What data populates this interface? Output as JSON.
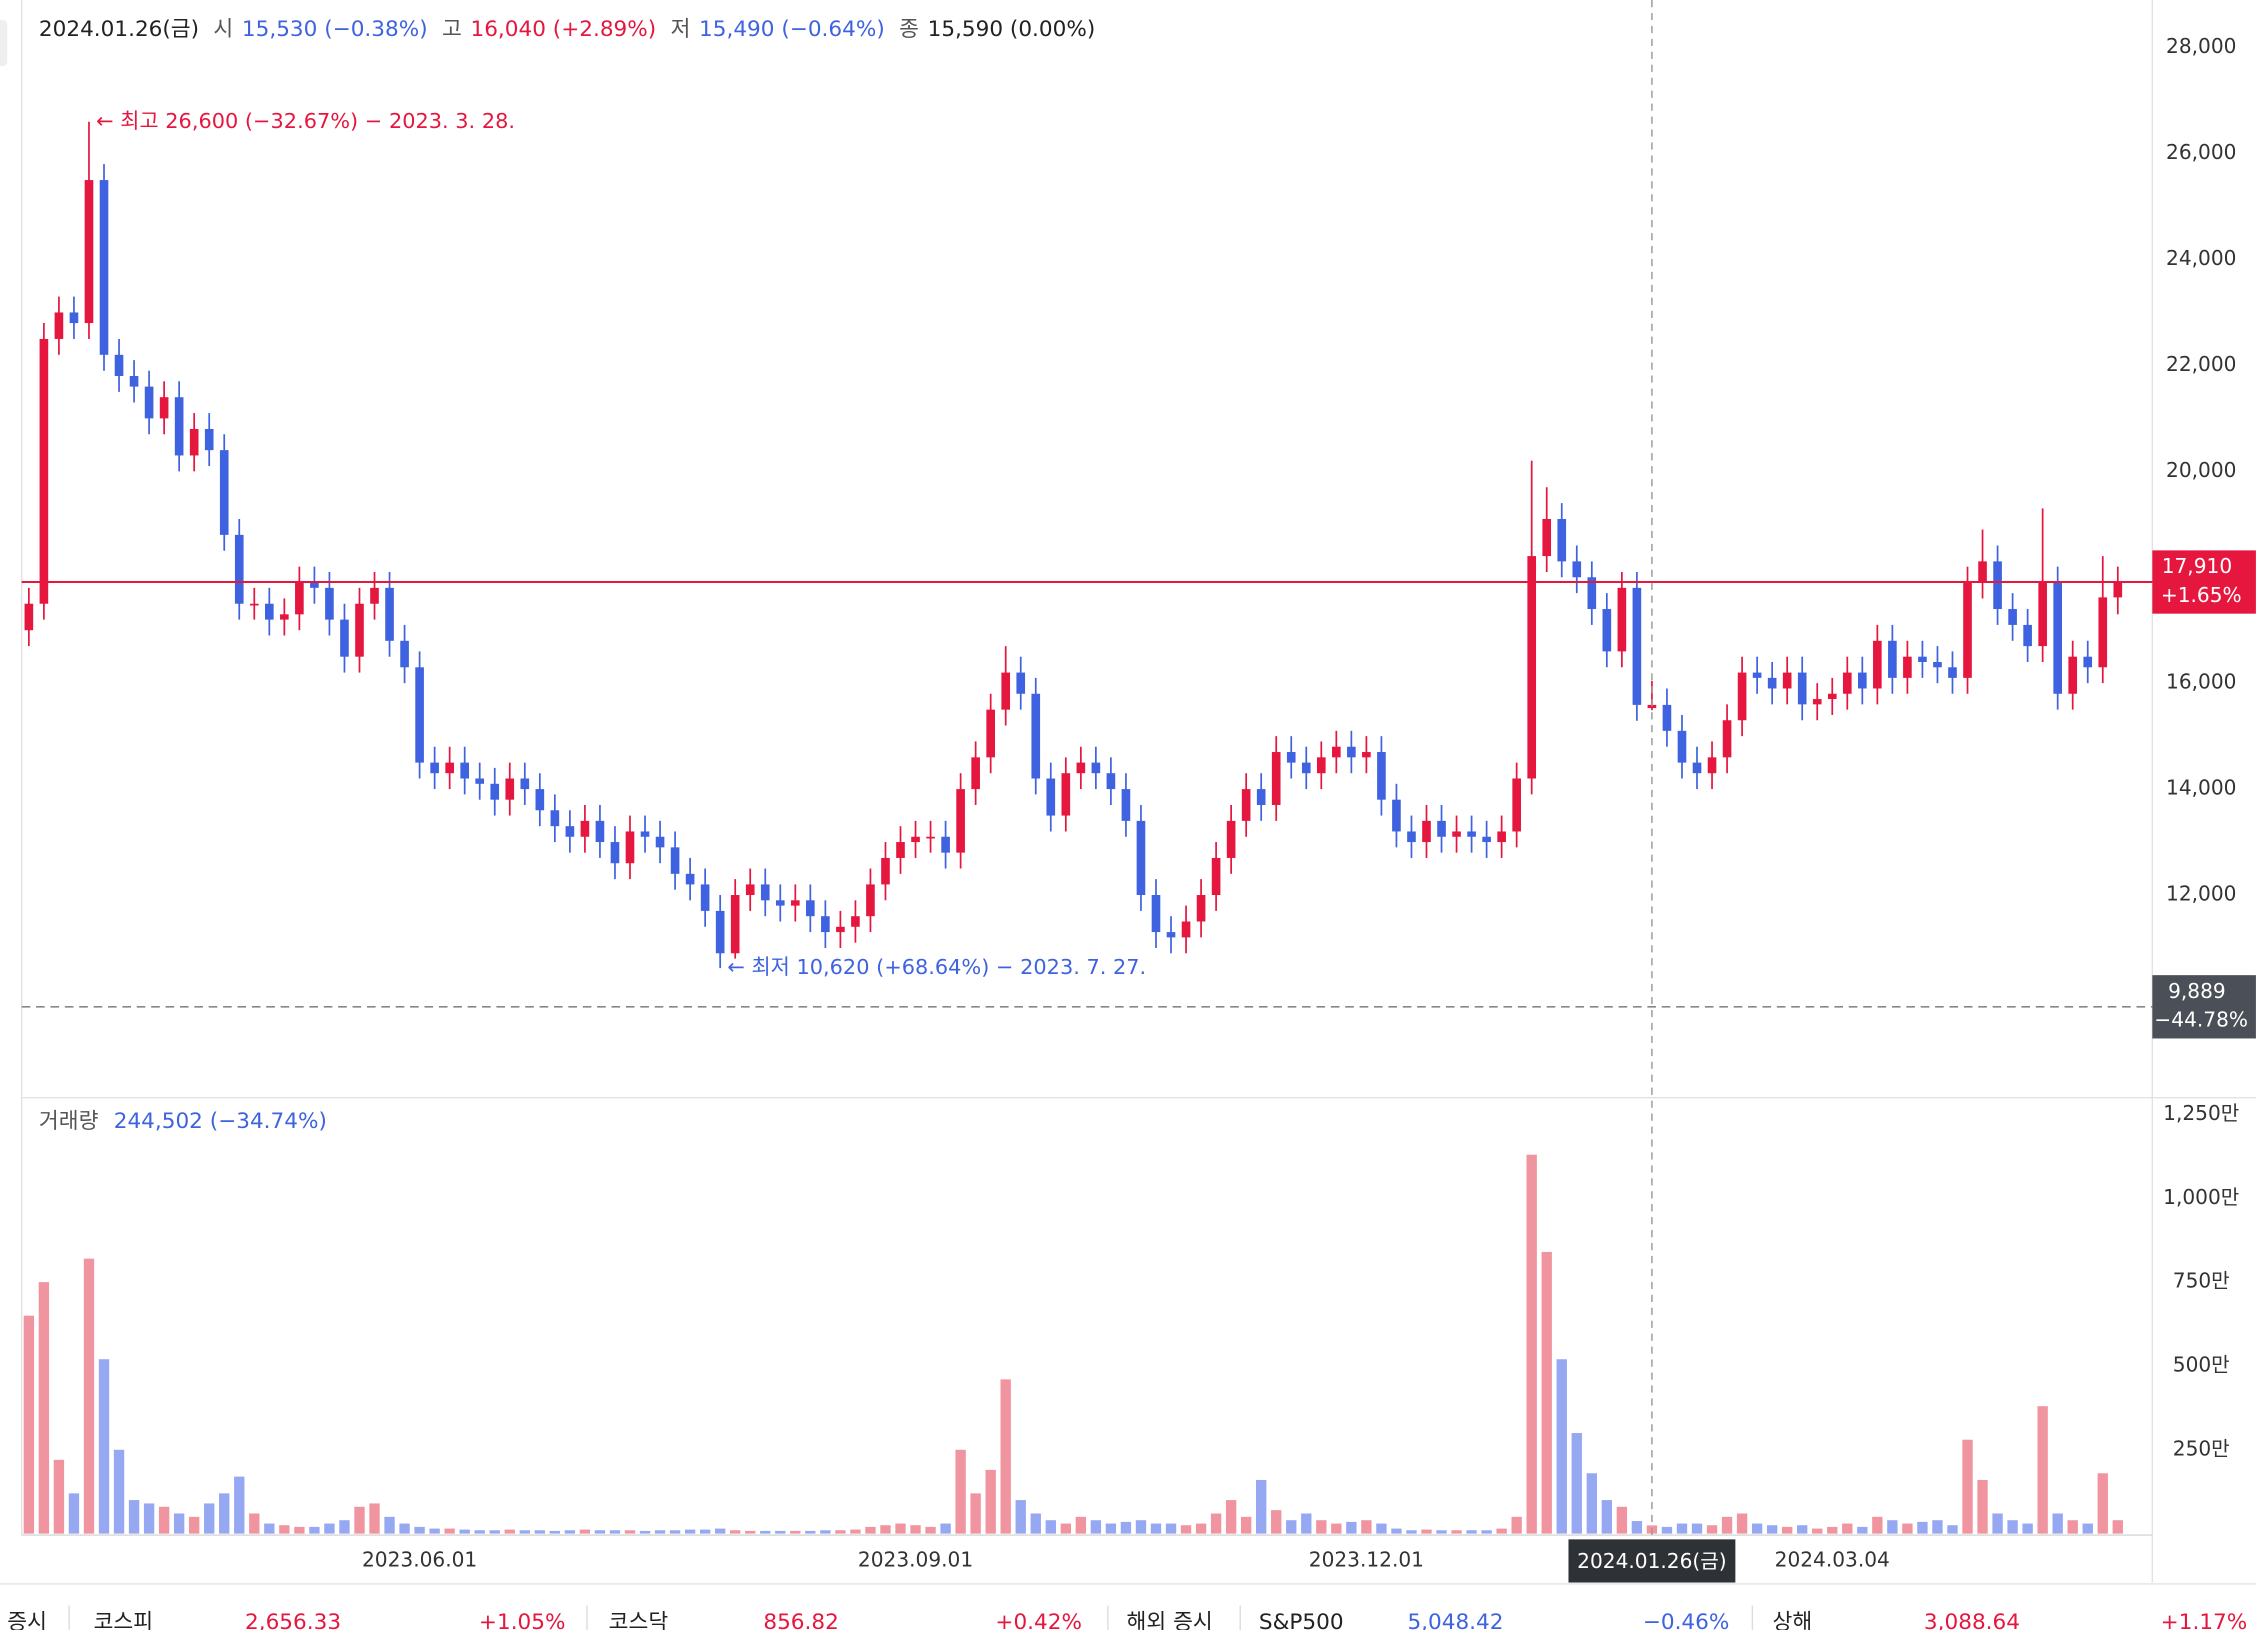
{
  "chart_data": {
    "type": "candlestick",
    "up_color": "#e5173f",
    "down_color": "#3f63e0",
    "categories": [
      null,
      null,
      null,
      null,
      null,
      null,
      null,
      null,
      null,
      null,
      null,
      null,
      null,
      null,
      null,
      null,
      null,
      null,
      null,
      null,
      null,
      null,
      null,
      null,
      null,
      null,
      "2023.06.01",
      null,
      null,
      null,
      null,
      null,
      null,
      null,
      null,
      null,
      null,
      null,
      null,
      null,
      null,
      null,
      null,
      null,
      null,
      null,
      null,
      null,
      null,
      null,
      null,
      null,
      null,
      null,
      null,
      null,
      null,
      null,
      null,
      "2023.09.01",
      null,
      null,
      null,
      null,
      null,
      null,
      null,
      null,
      null,
      null,
      null,
      null,
      null,
      null,
      null,
      null,
      null,
      null,
      null,
      null,
      null,
      null,
      null,
      null,
      null,
      null,
      null,
      null,
      null,
      "2023.12.01",
      null,
      null,
      null,
      null,
      null,
      null,
      null,
      null,
      null,
      null,
      null,
      null,
      null,
      null,
      null,
      null,
      null,
      null,
      "2024.01.26(금)",
      null,
      null,
      null,
      null,
      null,
      null,
      null,
      null,
      null,
      null,
      null,
      "2024.03.04",
      null,
      null,
      null,
      null,
      null,
      null,
      null,
      null,
      null,
      null,
      null,
      null,
      null,
      null,
      null,
      null,
      null,
      null,
      null
    ],
    "open": [
      17000,
      17500,
      22500,
      23000,
      22800,
      25500,
      22200,
      21800,
      21600,
      21000,
      21400,
      20300,
      20800,
      20400,
      18800,
      17500,
      17500,
      17200,
      17300,
      17900,
      17800,
      17200,
      16500,
      17500,
      17800,
      16800,
      16300,
      14500,
      14300,
      14500,
      14200,
      14100,
      13800,
      14200,
      14000,
      13600,
      13300,
      13100,
      13400,
      13000,
      12600,
      13200,
      13100,
      12900,
      12400,
      12200,
      11700,
      10900,
      12000,
      12200,
      11900,
      11800,
      11900,
      11600,
      11300,
      11400,
      11600,
      12200,
      12700,
      13000,
      13100,
      13100,
      12800,
      14000,
      14600,
      15500,
      16200,
      15800,
      14200,
      13500,
      14300,
      14500,
      14300,
      14000,
      13400,
      12000,
      11300,
      11200,
      11500,
      12000,
      12700,
      13400,
      14000,
      13700,
      14700,
      14500,
      14300,
      14600,
      14800,
      14600,
      14700,
      13800,
      13200,
      13000,
      13400,
      13100,
      13200,
      13100,
      13000,
      13200,
      14200,
      18400,
      19100,
      18300,
      18000,
      17400,
      16600,
      17800,
      15530,
      15590,
      15100,
      14500,
      14300,
      14600,
      15300,
      16200,
      16100,
      15900,
      16200,
      15600,
      15700,
      15800,
      16200,
      15900,
      16800,
      16100,
      16500,
      16400,
      16300,
      16100,
      17900,
      18300,
      17400,
      17100,
      16700,
      17900,
      15800,
      16500,
      16300,
      17620
    ],
    "high": [
      17800,
      22800,
      23300,
      23300,
      26600,
      25800,
      22500,
      22100,
      21900,
      21700,
      21700,
      21100,
      21100,
      20700,
      19100,
      17800,
      17800,
      17600,
      18200,
      18200,
      18100,
      17500,
      17800,
      18100,
      18100,
      17100,
      16600,
      14800,
      14800,
      14800,
      14500,
      14400,
      14500,
      14500,
      14300,
      13900,
      13600,
      13700,
      13700,
      13300,
      13500,
      13500,
      13400,
      13200,
      12700,
      12500,
      12000,
      12300,
      12500,
      12500,
      12200,
      12200,
      12200,
      11900,
      11700,
      11900,
      12500,
      13000,
      13300,
      13400,
      13400,
      13400,
      14300,
      14900,
      15800,
      16700,
      16500,
      16100,
      14500,
      14600,
      14800,
      14800,
      14600,
      14300,
      13700,
      12300,
      11600,
      11800,
      12300,
      13000,
      13700,
      14300,
      14300,
      15000,
      15000,
      14800,
      14900,
      15100,
      15100,
      15000,
      15000,
      14100,
      13500,
      13700,
      13700,
      13500,
      13500,
      13400,
      13500,
      14500,
      20200,
      19700,
      19400,
      18600,
      18300,
      17700,
      18100,
      18100,
      16040,
      15900,
      15400,
      14800,
      14900,
      15600,
      16500,
      16500,
      16400,
      16500,
      16500,
      16000,
      16100,
      16500,
      16500,
      17100,
      17100,
      16800,
      16800,
      16700,
      16600,
      18200,
      18900,
      18600,
      17700,
      17400,
      19300,
      18200,
      16800,
      16800,
      18400,
      18200
    ],
    "low": [
      16700,
      17200,
      22200,
      22500,
      22500,
      21900,
      21500,
      21300,
      20700,
      20700,
      20000,
      20000,
      20100,
      18500,
      17200,
      17200,
      16900,
      16900,
      17000,
      17500,
      16900,
      16200,
      16200,
      17200,
      16500,
      16000,
      14200,
      14000,
      14000,
      13900,
      13800,
      13500,
      13500,
      13700,
      13300,
      13000,
      12800,
      12800,
      12700,
      12300,
      12300,
      12800,
      12600,
      12100,
      11900,
      11400,
      10620,
      10800,
      11700,
      11600,
      11500,
      11500,
      11300,
      11000,
      11000,
      11100,
      11300,
      11900,
      12400,
      12700,
      12800,
      12500,
      12500,
      13700,
      14300,
      15200,
      15500,
      13900,
      13200,
      13200,
      14000,
      14000,
      13700,
      13100,
      11700,
      11000,
      10900,
      10900,
      11200,
      11700,
      12400,
      13100,
      13400,
      13400,
      14200,
      14000,
      14000,
      14300,
      14300,
      14300,
      13500,
      12900,
      12700,
      12700,
      12800,
      12800,
      12800,
      12700,
      12700,
      12900,
      13900,
      18100,
      18000,
      17700,
      17100,
      16300,
      16300,
      15290,
      15490,
      14800,
      14200,
      14000,
      14000,
      14300,
      15000,
      15800,
      15600,
      15600,
      15300,
      15300,
      15400,
      15500,
      15600,
      15600,
      15800,
      15800,
      16100,
      16000,
      15800,
      15800,
      17600,
      17100,
      16800,
      16400,
      16400,
      15500,
      15500,
      16000,
      16000,
      17300
    ],
    "close": [
      17500,
      22500,
      23000,
      22800,
      25500,
      22200,
      21800,
      21600,
      21000,
      21400,
      20300,
      20800,
      20400,
      18800,
      17500,
      17500,
      17200,
      17300,
      17900,
      17800,
      17200,
      16500,
      17500,
      17800,
      16800,
      16300,
      14500,
      14300,
      14500,
      14200,
      14100,
      13800,
      14200,
      14000,
      13600,
      13300,
      13100,
      13400,
      13000,
      12600,
      13200,
      13100,
      12900,
      12400,
      12200,
      11700,
      10900,
      12000,
      12200,
      11900,
      11800,
      11900,
      11600,
      11300,
      11400,
      11600,
      12200,
      12700,
      13000,
      13100,
      13100,
      12800,
      14000,
      14600,
      15500,
      16200,
      15800,
      14200,
      13500,
      14300,
      14500,
      14300,
      14000,
      13400,
      12000,
      11300,
      11200,
      11500,
      12000,
      12700,
      13400,
      14000,
      13700,
      14700,
      14500,
      14300,
      14600,
      14800,
      14600,
      14700,
      13800,
      13200,
      13000,
      13400,
      13100,
      13200,
      13100,
      13000,
      13200,
      14200,
      18400,
      19100,
      18300,
      18000,
      17400,
      16600,
      17800,
      15590,
      15590,
      15100,
      14500,
      14300,
      14600,
      15300,
      16200,
      16100,
      15900,
      16200,
      15600,
      15700,
      15800,
      16200,
      15900,
      16800,
      16100,
      16500,
      16400,
      16300,
      16100,
      17900,
      18300,
      17400,
      17100,
      16700,
      17900,
      15800,
      16500,
      16300,
      17620,
      17910
    ],
    "ylim": [
      8200,
      28900
    ],
    "yticks": [
      {
        "value": 12000,
        "label": "12,000"
      },
      {
        "value": 14000,
        "label": "14,000"
      },
      {
        "value": 16000,
        "label": "16,000"
      },
      {
        "value": 18000,
        "label": "18,000"
      },
      {
        "value": 20000,
        "label": "20,000"
      },
      {
        "value": 22000,
        "label": "22,000"
      },
      {
        "value": 24000,
        "label": "24,000"
      },
      {
        "value": 26000,
        "label": "26,000"
      },
      {
        "value": 28000,
        "label": "28,000"
      }
    ],
    "header": {
      "items": [
        {
          "label": "시",
          "value": 15530,
          "text": "15,530 (−0.38%)",
          "color": "#3f63e0"
        },
        {
          "label": "고",
          "value": 16040,
          "text": "16,040 (+2.89%)",
          "color": "#e5173f"
        },
        {
          "label": "저",
          "value": 15490,
          "text": "15,490 (−0.64%)",
          "color": "#3f63e0"
        },
        {
          "label": "종",
          "value": 15590,
          "text": "15,590 (0.00%)",
          "color": "#222222"
        }
      ]
    },
    "annotations": [
      {
        "text": "← 최고 26,600 (−32.67%) − 2023. 3. 28.",
        "value": 26600,
        "color": "#e5173f"
      },
      {
        "text": "← 최저 10,620 (+68.64%) − 2023. 7. 27.",
        "value": 10620,
        "color": "#3f63e0"
      }
    ],
    "price_lines": [
      {
        "value": 17910,
        "label": "17,910",
        "change": "+1.65%",
        "color": "#e5173f",
        "dashed": false
      },
      {
        "value": 9889,
        "label": "9,889",
        "change": "−44.78%",
        "color": "#4b4f58",
        "dashed": true
      }
    ],
    "volume": {
      "title": "거래량",
      "readout": "244,502 (−34.74%)",
      "up_color": "#f0959f",
      "down_color": "#97a8f2",
      "values": [
        650,
        750,
        220,
        120,
        820,
        520,
        250,
        100,
        90,
        80,
        60,
        50,
        90,
        120,
        170,
        60,
        30,
        25,
        20,
        20,
        30,
        40,
        80,
        90,
        50,
        30,
        20,
        15,
        15,
        12,
        10,
        10,
        12,
        10,
        10,
        8,
        10,
        12,
        10,
        10,
        10,
        8,
        10,
        10,
        12,
        12,
        15,
        10,
        8,
        8,
        8,
        8,
        8,
        10,
        10,
        12,
        20,
        25,
        30,
        25,
        20,
        30,
        250,
        120,
        190,
        460,
        100,
        60,
        40,
        30,
        50,
        40,
        30,
        35,
        40,
        30,
        30,
        25,
        30,
        60,
        100,
        50,
        160,
        70,
        40,
        60,
        40,
        30,
        35,
        40,
        30,
        15,
        10,
        12,
        10,
        10,
        10,
        10,
        15,
        50,
        1130,
        840,
        520,
        300,
        180,
        100,
        80,
        37.47,
        24.4502,
        20,
        30,
        30,
        25,
        50,
        60,
        30,
        25,
        20,
        25,
        15,
        20,
        30,
        20,
        50,
        40,
        30,
        35,
        40,
        25,
        280,
        160,
        60,
        40,
        30,
        380,
        60,
        40,
        30,
        180,
        40
      ],
      "ylim": [
        0,
        1300
      ],
      "yticks": [
        {
          "value": 250,
          "label": "250만"
        },
        {
          "value": 500,
          "label": "500만"
        },
        {
          "value": 750,
          "label": "750만"
        },
        {
          "value": 1000,
          "label": "1,000만"
        },
        {
          "value": 1250,
          "label": "1,250만"
        }
      ]
    }
  },
  "ticker_bar": {
    "sections": [
      {
        "title": "증시",
        "indices": [
          {
            "name": "코스피",
            "value": "2,656.33",
            "change": "+1.05%"
          },
          {
            "name": "코스닥",
            "value": "856.82",
            "change": "+0.42%"
          }
        ]
      },
      {
        "title": "해외 증시",
        "indices": [
          {
            "name": "S&P500",
            "value": "5,048.42",
            "change": "−0.46%"
          },
          {
            "name": "상해",
            "value": "3,088.64",
            "change": "+1.17%"
          }
        ]
      }
    ]
  }
}
